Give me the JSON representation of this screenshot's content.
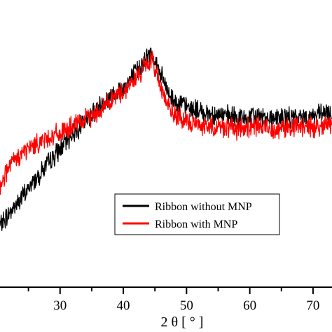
{
  "chart_data": {
    "type": "line",
    "xlabel": "2 θ [ ° ]",
    "xlim": [
      20.5,
      73
    ],
    "ylim": [
      0,
      1
    ],
    "x_ticks": [
      30,
      40,
      50,
      60,
      70
    ],
    "legend": {
      "placement": "center-right",
      "entries": [
        "Ribbon without MNP",
        "Ribbon with MNP"
      ]
    },
    "series": [
      {
        "name": "Ribbon without MNP",
        "color": "#000000",
        "x": [
          20.5,
          22,
          24,
          26,
          28,
          30,
          32,
          34,
          36,
          38,
          40,
          41,
          42,
          43,
          44,
          44.5,
          45,
          46,
          47,
          48,
          50,
          52,
          54,
          56,
          58,
          60,
          62,
          64,
          66,
          68,
          70,
          72,
          73
        ],
        "y": [
          0.15,
          0.21,
          0.28,
          0.36,
          0.43,
          0.5,
          0.57,
          0.63,
          0.69,
          0.74,
          0.78,
          0.81,
          0.85,
          0.89,
          0.92,
          0.93,
          0.9,
          0.83,
          0.76,
          0.72,
          0.69,
          0.67,
          0.66,
          0.65,
          0.64,
          0.64,
          0.65,
          0.64,
          0.64,
          0.64,
          0.65,
          0.66,
          0.65
        ]
      },
      {
        "name": "Ribbon with MNP",
        "color": "#ff0000",
        "x": [
          20.5,
          22,
          24,
          26,
          28,
          30,
          32,
          34,
          36,
          38,
          40,
          41,
          42,
          43,
          44,
          44.5,
          45,
          46,
          47,
          48,
          50,
          52,
          54,
          56,
          58,
          60,
          62,
          64,
          66,
          68,
          70,
          72,
          73
        ],
        "y": [
          0.34,
          0.42,
          0.48,
          0.52,
          0.55,
          0.57,
          0.6,
          0.63,
          0.67,
          0.72,
          0.76,
          0.79,
          0.82,
          0.86,
          0.89,
          0.9,
          0.87,
          0.78,
          0.7,
          0.65,
          0.62,
          0.61,
          0.6,
          0.6,
          0.59,
          0.6,
          0.6,
          0.59,
          0.6,
          0.6,
          0.6,
          0.61,
          0.61
        ]
      }
    ]
  }
}
